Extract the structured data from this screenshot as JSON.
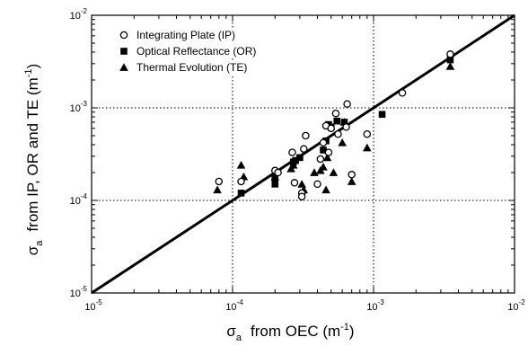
{
  "chart_data": {
    "type": "scatter",
    "x_scale": "log",
    "y_scale": "log",
    "xlim": [
      1e-05,
      0.01
    ],
    "ylim": [
      1e-05,
      0.01
    ],
    "grid": "dotted, at decades",
    "legend_position": "top-left",
    "x_label": {
      "symbol": "σ",
      "subscript": "a",
      "text": "from OEC (m",
      "superscript": "-1",
      "close": ")"
    },
    "y_label": {
      "symbol": "σ",
      "subscript": "a",
      "text": "from IP, OR and TE (m",
      "superscript": "-1",
      "close": ")"
    },
    "x_ticks": [
      {
        "value": 1e-05,
        "base": "10",
        "exp": "-5"
      },
      {
        "value": 0.0001,
        "base": "10",
        "exp": "-4"
      },
      {
        "value": 0.001,
        "base": "10",
        "exp": "-3"
      },
      {
        "value": 0.01,
        "base": "10",
        "exp": "-2"
      }
    ],
    "y_ticks": [
      {
        "value": 1e-05,
        "base": "10",
        "exp": "-5"
      },
      {
        "value": 0.0001,
        "base": "10",
        "exp": "-4"
      },
      {
        "value": 0.001,
        "base": "10",
        "exp": "-3"
      },
      {
        "value": 0.01,
        "base": "10",
        "exp": "-2"
      }
    ],
    "line": {
      "label": "",
      "x": [
        1e-05,
        0.01
      ],
      "y": [
        1e-05,
        0.01
      ]
    },
    "series": [
      {
        "name": "Integrating Plate (IP)",
        "marker": "open-circle",
        "points": [
          [
            8e-05,
            0.00016
          ],
          [
            0.000115,
            0.00016
          ],
          [
            0.0002,
            0.00021
          ],
          [
            0.00021,
            0.0002
          ],
          [
            0.000265,
            0.00033
          ],
          [
            0.000275,
            0.000155
          ],
          [
            0.00031,
            0.00012
          ],
          [
            0.00031,
            0.00011
          ],
          [
            0.00032,
            0.00036
          ],
          [
            0.00033,
            0.0005
          ],
          [
            0.0004,
            0.00015
          ],
          [
            0.00042,
            0.00028
          ],
          [
            0.00044,
            0.00042
          ],
          [
            0.00046,
            0.00064
          ],
          [
            0.00048,
            0.00033
          ],
          [
            0.0005,
            0.0006
          ],
          [
            0.00054,
            0.00087
          ],
          [
            0.00056,
            0.00052
          ],
          [
            0.00064,
            0.00062
          ],
          [
            0.00065,
            0.0011
          ],
          [
            0.0007,
            0.00019
          ],
          [
            0.0009,
            0.00052
          ],
          [
            0.0016,
            0.00145
          ],
          [
            0.0035,
            0.0038
          ]
        ]
      },
      {
        "name": "Optical Reflectance (OR)",
        "marker": "filled-square",
        "points": [
          [
            0.000115,
            0.00012
          ],
          [
            0.0002,
            0.00017
          ],
          [
            0.0002,
            0.00015
          ],
          [
            0.00027,
            0.00026
          ],
          [
            0.00028,
            0.00027
          ],
          [
            0.0003,
            0.00029
          ],
          [
            0.00044,
            0.00035
          ],
          [
            0.00046,
            0.00044
          ],
          [
            0.00048,
            0.00066
          ],
          [
            0.0005,
            0.00062
          ],
          [
            0.00055,
            0.00072
          ],
          [
            0.00062,
            0.0007
          ],
          [
            0.00115,
            0.00085
          ],
          [
            0.0035,
            0.0033
          ]
        ]
      },
      {
        "name": "Thermal Evolution (TE)",
        "marker": "filled-triangle",
        "points": [
          [
            7.8e-05,
            0.00013
          ],
          [
            0.000115,
            0.00024
          ],
          [
            0.00012,
            0.00018
          ],
          [
            0.0002,
            0.00018
          ],
          [
            0.00026,
            0.00022
          ],
          [
            0.00027,
            0.00024
          ],
          [
            0.00031,
            0.00015
          ],
          [
            0.00032,
            0.00013
          ],
          [
            0.00038,
            0.0002
          ],
          [
            0.00042,
            0.00021
          ],
          [
            0.00044,
            0.00023
          ],
          [
            0.00046,
            0.00013
          ],
          [
            0.00047,
            0.00029
          ],
          [
            0.00052,
            0.0002
          ],
          [
            0.0006,
            0.00042
          ],
          [
            0.00062,
            0.0007
          ],
          [
            0.0007,
            0.00016
          ],
          [
            0.0009,
            0.00037
          ],
          [
            0.0035,
            0.0028
          ]
        ]
      }
    ]
  }
}
